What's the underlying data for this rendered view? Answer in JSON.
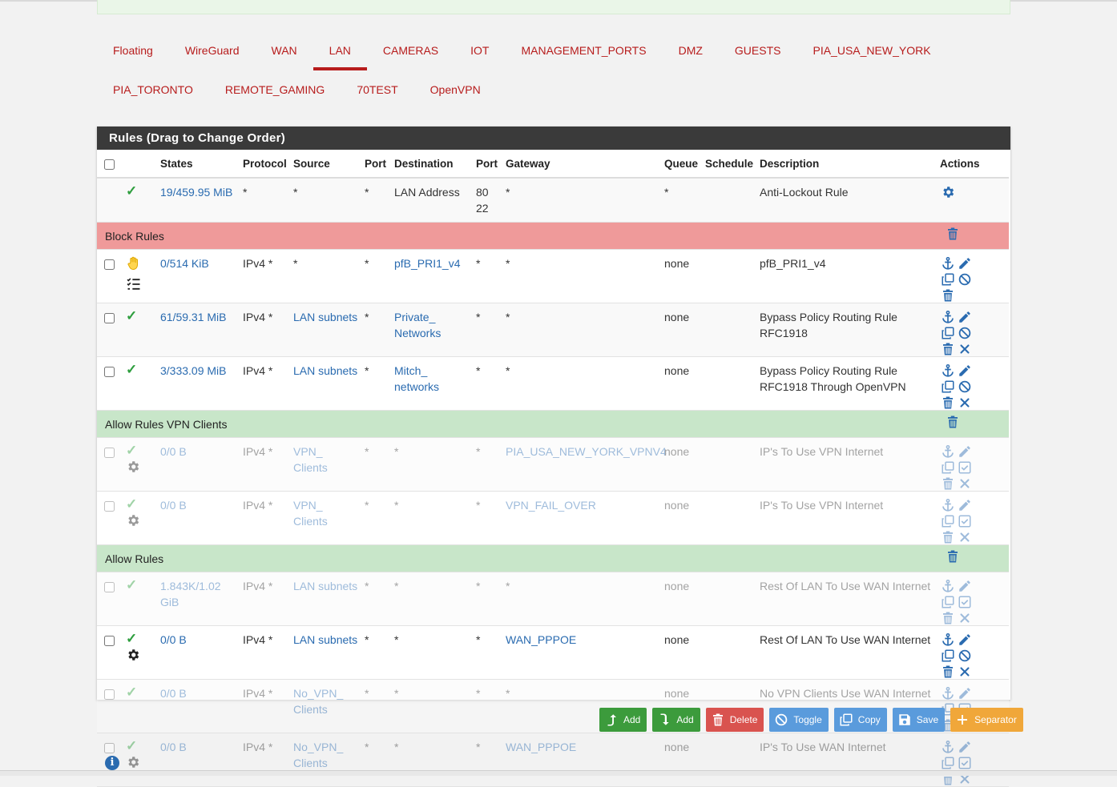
{
  "tabs_row1": [
    "Floating",
    "WireGuard",
    "WAN",
    "LAN",
    "CAMERAS",
    "IOT",
    "MANAGEMENT_PORTS",
    "DMZ",
    "GUESTS",
    "PIA_USA_NEW_YORK"
  ],
  "tabs_row2": [
    "PIA_TORONTO",
    "REMOTE_GAMING",
    "70TEST",
    "OpenVPN"
  ],
  "active_tab": "LAN",
  "panel_title": "Rules (Drag to Change Order)",
  "columns": [
    "",
    "",
    "States",
    "Protocol",
    "Source",
    "Port",
    "Destination",
    "Port",
    "Gateway",
    "Queue",
    "Schedule",
    "Description",
    "Actions"
  ],
  "rows": [
    {
      "type": "rule",
      "checkbox": false,
      "status": "check",
      "status2": "",
      "states": "19/459.95 MiB",
      "protocol": "*",
      "source": "*",
      "source_link": false,
      "sport": "*",
      "destination": "LAN Address",
      "dest_link": false,
      "dport": "80 22",
      "gateway": "*",
      "gateway_link": false,
      "queue": "*",
      "schedule": "",
      "description": "Anti-Lockout Rule",
      "actions": [
        "gear"
      ],
      "disabled": false
    },
    {
      "type": "sep",
      "color": "red",
      "label": "Block Rules"
    },
    {
      "type": "rule",
      "checkbox": true,
      "status": "hand",
      "status2": "list",
      "states": "0/514 KiB",
      "protocol": "IPv4 *",
      "source": "*",
      "source_link": false,
      "sport": "*",
      "destination": "pfB_PRI1_v4",
      "dest_link": true,
      "dport": "*",
      "gateway": "*",
      "gateway_link": false,
      "queue": "none",
      "schedule": "",
      "description": "pfB_PRI1_v4",
      "actions": [
        "anchor",
        "pencil",
        "copy",
        "ban",
        "trash"
      ],
      "disabled": false
    },
    {
      "type": "rule",
      "checkbox": true,
      "status": "check",
      "status2": "",
      "states": "61/59.31 MiB",
      "protocol": "IPv4 *",
      "source": "LAN subnets",
      "source_link": true,
      "sport": "*",
      "destination": "Private_ Networks",
      "dest_link": true,
      "dport": "*",
      "gateway": "*",
      "gateway_link": false,
      "queue": "none",
      "schedule": "",
      "description": "Bypass Policy Routing Rule RFC1918",
      "actions": [
        "anchor",
        "pencil",
        "copy",
        "ban",
        "trash",
        "x"
      ],
      "disabled": false
    },
    {
      "type": "rule",
      "checkbox": true,
      "status": "check",
      "status2": "",
      "states": "3/333.09 MiB",
      "protocol": "IPv4 *",
      "source": "LAN subnets",
      "source_link": true,
      "sport": "*",
      "destination": "Mitch_ networks",
      "dest_link": true,
      "dport": "*",
      "gateway": "*",
      "gateway_link": false,
      "queue": "none",
      "schedule": "",
      "description": "Bypass Policy Routing Rule RFC1918 Through OpenVPN",
      "actions": [
        "anchor",
        "pencil",
        "copy",
        "ban",
        "trash",
        "x"
      ],
      "disabled": false
    },
    {
      "type": "sep",
      "color": "green",
      "label": "Allow Rules VPN Clients"
    },
    {
      "type": "rule",
      "checkbox": true,
      "status": "check",
      "status2": "gear",
      "states": "0/0 B",
      "protocol": "IPv4 *",
      "source": "VPN_ Clients",
      "source_link": true,
      "sport": "*",
      "destination": "*",
      "dest_link": false,
      "dport": "*",
      "gateway": "PIA_USA_NEW_YORK_VPNV4",
      "gateway_link": true,
      "queue": "none",
      "schedule": "",
      "description": "IP's To Use VPN Internet",
      "actions": [
        "anchor",
        "pencil",
        "copy",
        "checkbox",
        "trash",
        "x"
      ],
      "disabled": true
    },
    {
      "type": "rule",
      "checkbox": true,
      "status": "check",
      "status2": "gear",
      "states": "0/0 B",
      "protocol": "IPv4 *",
      "source": "VPN_ Clients",
      "source_link": true,
      "sport": "*",
      "destination": "*",
      "dest_link": false,
      "dport": "*",
      "gateway": "VPN_FAIL_OVER",
      "gateway_link": true,
      "queue": "none",
      "schedule": "",
      "description": "IP's To Use VPN Internet",
      "actions": [
        "anchor",
        "pencil",
        "copy",
        "checkbox",
        "trash",
        "x"
      ],
      "disabled": true
    },
    {
      "type": "sep",
      "color": "green",
      "label": "Allow Rules"
    },
    {
      "type": "rule",
      "checkbox": true,
      "status": "check",
      "status2": "",
      "states": "1.843K/1.02 GiB",
      "protocol": "IPv4 *",
      "source": "LAN subnets",
      "source_link": true,
      "sport": "*",
      "destination": "*",
      "dest_link": false,
      "dport": "*",
      "gateway": "*",
      "gateway_link": false,
      "queue": "none",
      "schedule": "",
      "description": "Rest Of LAN To Use WAN Internet",
      "actions": [
        "anchor",
        "pencil",
        "copy",
        "checkbox",
        "trash",
        "x"
      ],
      "disabled": true
    },
    {
      "type": "rule",
      "checkbox": true,
      "status": "check",
      "status2": "gear",
      "states": "0/0 B",
      "protocol": "IPv4 *",
      "source": "LAN subnets",
      "source_link": true,
      "sport": "*",
      "destination": "*",
      "dest_link": false,
      "dport": "*",
      "gateway": "WAN_PPPOE",
      "gateway_link": true,
      "queue": "none",
      "schedule": "",
      "description": "Rest Of LAN To Use WAN Internet",
      "actions": [
        "anchor",
        "pencil",
        "copy",
        "ban",
        "trash",
        "x"
      ],
      "disabled": false
    },
    {
      "type": "rule",
      "checkbox": true,
      "status": "check",
      "status2": "",
      "states": "0/0 B",
      "protocol": "IPv4 *",
      "source": "No_VPN_ Clients",
      "source_link": true,
      "sport": "*",
      "destination": "*",
      "dest_link": false,
      "dport": "*",
      "gateway": "*",
      "gateway_link": false,
      "queue": "none",
      "schedule": "",
      "description": "No VPN Clients Use WAN Internet",
      "actions": [
        "anchor",
        "pencil",
        "copy",
        "checkbox",
        "trash",
        "x"
      ],
      "disabled": true
    },
    {
      "type": "rule",
      "checkbox": true,
      "status": "check",
      "status2": "gear",
      "states": "0/0 B",
      "protocol": "IPv4 *",
      "source": "No_VPN_ Clients",
      "source_link": true,
      "sport": "*",
      "destination": "*",
      "dest_link": false,
      "dport": "*",
      "gateway": "WAN_PPPOE",
      "gateway_link": true,
      "queue": "none",
      "schedule": "",
      "description": "IP's To Use WAN Internet",
      "actions": [
        "anchor",
        "pencil",
        "copy",
        "checkbox",
        "trash",
        "x"
      ],
      "disabled": true
    }
  ],
  "buttons": [
    {
      "label": "Add",
      "icon": "arrow-up-icon",
      "color": "green"
    },
    {
      "label": "Add",
      "icon": "arrow-down-icon",
      "color": "green"
    },
    {
      "label": "Delete",
      "icon": "trash-icon",
      "color": "red"
    },
    {
      "label": "Toggle",
      "icon": "ban-icon",
      "color": "blue"
    },
    {
      "label": "Copy",
      "icon": "copy-icon",
      "color": "blue"
    },
    {
      "label": "Save",
      "icon": "save-icon",
      "color": "blue"
    },
    {
      "label": "Separator",
      "icon": "plus-icon",
      "color": "orange"
    }
  ],
  "info_icon": "i"
}
